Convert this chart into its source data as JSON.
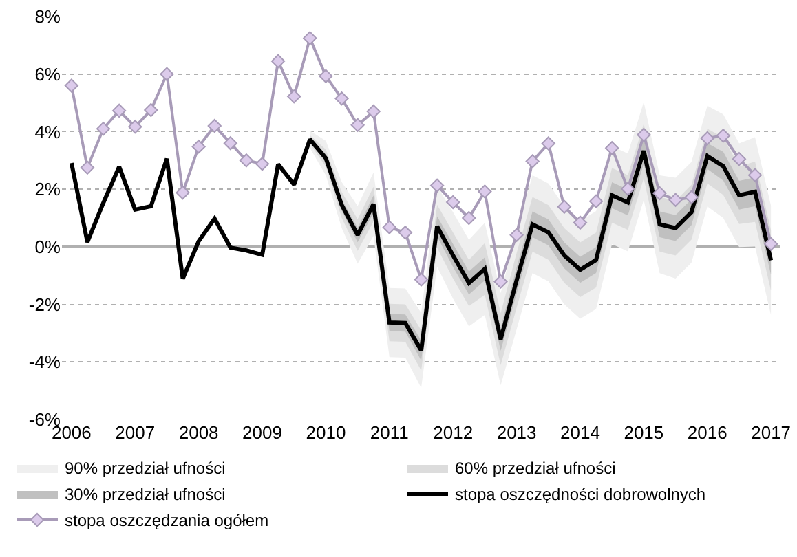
{
  "chart_data": {
    "type": "line",
    "xlim": [
      2005.85,
      2017.15
    ],
    "xticks": [
      2006,
      2007,
      2008,
      2009,
      2010,
      2011,
      2012,
      2013,
      2014,
      2015,
      2016,
      2017
    ],
    "ylim": [
      -6,
      8
    ],
    "yticks": [
      {
        "value": -6,
        "label": "-6%"
      },
      {
        "value": -4,
        "label": "-4%"
      },
      {
        "value": -2,
        "label": "-2%"
      },
      {
        "value": 0,
        "label": "0%"
      },
      {
        "value": 2,
        "label": "2%"
      },
      {
        "value": 4,
        "label": "4%"
      },
      {
        "value": 6,
        "label": "6%"
      },
      {
        "value": 8,
        "label": "8%"
      }
    ],
    "grid": "y",
    "legend": "bottom",
    "x": [
      2006,
      2006.25,
      2006.5,
      2006.75,
      2007,
      2007.25,
      2007.5,
      2007.75,
      2008,
      2008.25,
      2008.5,
      2008.75,
      2009,
      2009.25,
      2009.5,
      2009.75,
      2010,
      2010.25,
      2010.5,
      2010.75,
      2011,
      2011.25,
      2011.5,
      2011.75,
      2012,
      2012.25,
      2012.5,
      2012.75,
      2013,
      2013.25,
      2013.5,
      2013.75,
      2014,
      2014.25,
      2014.5,
      2014.75,
      2015,
      2015.25,
      2015.5,
      2015.75,
      2016,
      2016.25,
      2016.5,
      2016.75,
      2017
    ],
    "series": [
      {
        "name": "90% przedział ufności",
        "type": "area",
        "color": "#efefef",
        "values": [
          null,
          null,
          null,
          null,
          null,
          null,
          null,
          null,
          null,
          null,
          null,
          null,
          null,
          null,
          null,
          null,
          null,
          null,
          null,
          null,
          null,
          null,
          null,
          null,
          null,
          null,
          null,
          null,
          null,
          null
        ],
        "x": [
          2009.75,
          2010,
          2010.25,
          2010.5,
          2010.75,
          2011,
          2011.25,
          2011.5,
          2011.75,
          2012,
          2012.25,
          2012.5,
          2012.75,
          2013,
          2013.25,
          2013.5,
          2013.75,
          2014,
          2014.25,
          2014.5,
          2014.75,
          2015,
          2015.25,
          2015.5,
          2015.75,
          2016,
          2016.25,
          2016.5,
          2016.75,
          2017
        ],
        "lower": [
          3.43,
          2.48,
          0.65,
          -0.59,
          0.38,
          -3.83,
          -3.85,
          -4.9,
          -0.69,
          -1.8,
          -2.76,
          -2.37,
          -4.81,
          -2.87,
          -0.92,
          -1.2,
          -2.0,
          -2.5,
          -2.16,
          0.09,
          -0.16,
          1.63,
          -0.92,
          -1.1,
          -0.55,
          1.4,
          1.0,
          -0.01,
          0.01,
          -2.37
        ],
        "upper": [
          4.03,
          3.68,
          2.25,
          1.41,
          2.58,
          -1.43,
          -1.45,
          -2.3,
          2.11,
          1.2,
          0.24,
          0.83,
          -1.61,
          0.53,
          2.48,
          2.2,
          1.4,
          0.9,
          1.24,
          3.49,
          3.24,
          5.03,
          2.48,
          2.4,
          2.95,
          4.9,
          4.6,
          3.59,
          3.81,
          1.43
        ]
      },
      {
        "name": "60% przedział ufności",
        "type": "area",
        "color": "#dcdcdc",
        "values": [
          null,
          null,
          null,
          null,
          null,
          null,
          null,
          null,
          null,
          null,
          null,
          null,
          null,
          null,
          null,
          null,
          null,
          null,
          null,
          null,
          null,
          null,
          null,
          null,
          null,
          null,
          null,
          null,
          null,
          null
        ],
        "x": [
          2009.75,
          2010,
          2010.25,
          2010.5,
          2010.75,
          2011,
          2011.25,
          2011.5,
          2011.75,
          2012,
          2012.25,
          2012.5,
          2012.75,
          2013,
          2013.25,
          2013.5,
          2013.75,
          2014,
          2014.25,
          2014.5,
          2014.75,
          2015,
          2015.25,
          2015.5,
          2015.75,
          2016,
          2016.25,
          2016.5,
          2016.75,
          2017
        ],
        "lower": [
          3.58,
          2.78,
          1.0,
          -0.14,
          0.88,
          -3.28,
          -3.3,
          -4.3,
          -0.04,
          -1.1,
          -2.06,
          -1.67,
          -4.11,
          -2.12,
          -0.17,
          -0.45,
          -1.25,
          -1.75,
          -1.41,
          0.84,
          0.59,
          2.38,
          -0.17,
          -0.3,
          0.25,
          2.2,
          1.8,
          0.79,
          0.86,
          -1.52
        ],
        "upper": [
          3.88,
          3.38,
          1.9,
          0.96,
          2.08,
          -1.98,
          -2.0,
          -2.9,
          1.46,
          0.5,
          -0.46,
          0.13,
          -2.31,
          -0.22,
          1.73,
          1.45,
          0.65,
          0.15,
          0.49,
          2.74,
          2.49,
          4.28,
          1.73,
          1.6,
          2.15,
          4.1,
          3.8,
          2.79,
          2.96,
          0.58
        ]
      },
      {
        "name": "30% przedział ufności",
        "type": "area",
        "color": "#c0c0c0",
        "values": [
          null,
          null,
          null,
          null,
          null,
          null,
          null,
          null,
          null,
          null,
          null,
          null,
          null,
          null,
          null,
          null,
          null,
          null,
          null,
          null,
          null,
          null,
          null,
          null,
          null,
          null,
          null,
          null,
          null,
          null
        ],
        "x": [
          2009.75,
          2010,
          2010.25,
          2010.5,
          2010.75,
          2011,
          2011.25,
          2011.5,
          2011.75,
          2012,
          2012.25,
          2012.5,
          2012.75,
          2013,
          2013.25,
          2013.5,
          2013.75,
          2014,
          2014.25,
          2014.5,
          2014.75,
          2015,
          2015.25,
          2015.5,
          2015.75,
          2016,
          2016.25,
          2016.5,
          2016.75,
          2017
        ],
        "lower": [
          3.68,
          2.93,
          1.25,
          0.16,
          1.18,
          -2.93,
          -2.95,
          -3.95,
          0.36,
          -0.7,
          -1.66,
          -1.17,
          -3.61,
          -1.62,
          0.33,
          0.05,
          -0.75,
          -1.25,
          -0.91,
          1.34,
          1.09,
          2.88,
          0.33,
          0.2,
          0.75,
          2.7,
          2.3,
          1.29,
          1.41,
          -0.97
        ],
        "upper": [
          3.78,
          3.23,
          1.65,
          0.66,
          1.78,
          -2.33,
          -2.35,
          -3.25,
          1.06,
          0.1,
          -0.86,
          -0.37,
          -2.81,
          -0.72,
          1.23,
          0.95,
          0.15,
          -0.35,
          -0.01,
          2.24,
          1.99,
          3.78,
          1.23,
          1.1,
          1.65,
          3.6,
          3.3,
          2.29,
          2.41,
          0.03
        ]
      },
      {
        "name": "stopa oszczędności dobrowolnych",
        "color": "#000000",
        "marker": "none",
        "values": [
          2.91,
          0.16,
          1.52,
          2.78,
          1.29,
          1.41,
          3.06,
          -1.11,
          0.19,
          0.98,
          -0.03,
          -0.13,
          -0.28,
          2.87,
          2.16,
          3.73,
          3.08,
          1.45,
          0.41,
          1.48,
          -2.63,
          -2.65,
          -3.6,
          0.71,
          -0.3,
          -1.26,
          -0.77,
          -3.21,
          -1.17,
          0.78,
          0.5,
          -0.3,
          -0.8,
          -0.46,
          1.79,
          1.54,
          3.33,
          0.78,
          0.65,
          1.2,
          3.15,
          2.8,
          1.79,
          1.91,
          -0.47
        ]
      },
      {
        "name": "stopa oszczędzania ogółem",
        "color": "#a89bb8",
        "marker": "diamond",
        "values": [
          5.6,
          2.75,
          4.1,
          4.73,
          4.17,
          4.75,
          6.0,
          1.88,
          3.48,
          4.2,
          3.6,
          3.0,
          2.88,
          6.45,
          5.22,
          7.25,
          5.93,
          5.15,
          4.23,
          4.7,
          0.68,
          0.49,
          -1.14,
          2.13,
          1.55,
          1.0,
          1.92,
          -1.21,
          0.41,
          2.97,
          3.59,
          1.39,
          0.84,
          1.58,
          3.43,
          2.01,
          3.89,
          1.86,
          1.63,
          1.72,
          3.77,
          3.86,
          3.05,
          2.49,
          0.1
        ]
      }
    ]
  }
}
